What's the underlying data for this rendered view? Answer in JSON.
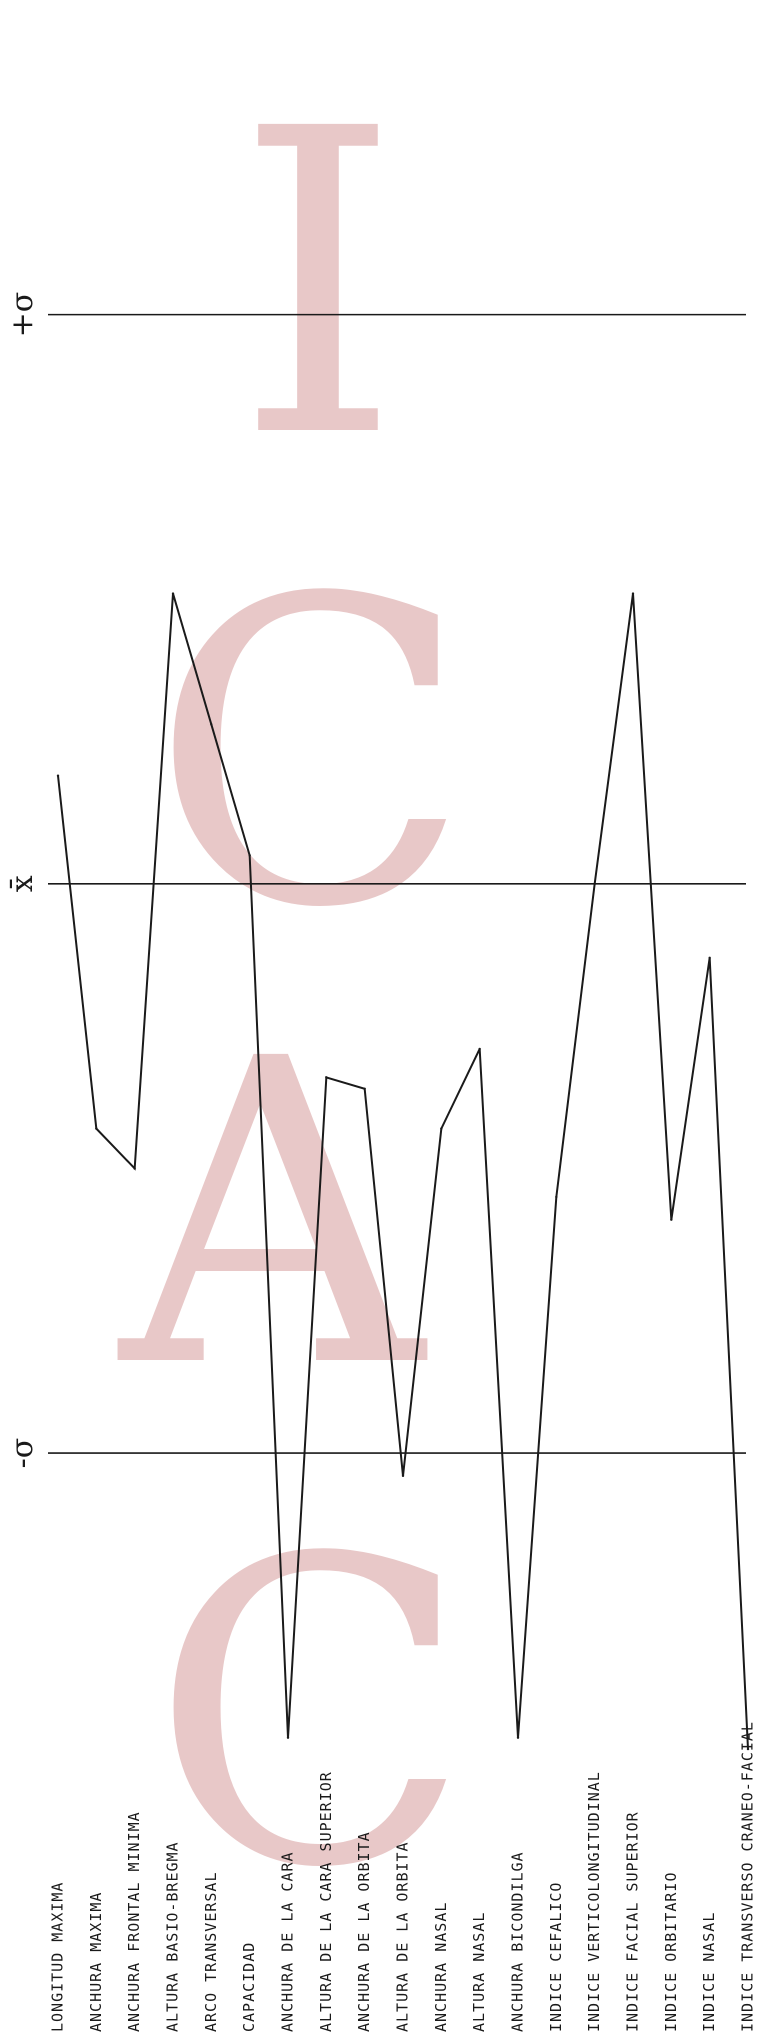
{
  "chart_data": {
    "type": "line",
    "orientation": "vertical-rotated",
    "reference_lines": [
      {
        "label": "+σ",
        "value": 1
      },
      {
        "label": "x̄",
        "value": 0
      },
      {
        "label": "-σ",
        "value": -1
      }
    ],
    "categories": [
      "LONGITUD MAXIMA",
      "ANCHURA MAXIMA",
      "ANCHURA FRONTAL MINIMA",
      "ALTURA BASIO-BREGMA",
      "ARCO TRANSVERSAL",
      "CAPACIDAD",
      "ANCHURA DE LA CARA",
      "ALTURA DE LA CARA SUPERIOR",
      "ANCHURA DE LA ORBITA",
      "ALTURA DE LA ORBITA",
      "ANCHURA NASAL",
      "ALTURA NASAL",
      "ANCHURA BICONDILGA",
      "INDICE CEFALICO",
      "INDICE VERTICOLONGITUDINAL",
      "INDICE FACIAL SUPERIOR",
      "INDICE ORBITARIO",
      "INDICE NASAL",
      "INDICE TRANSVERSO CRANEO-FACIAL"
    ],
    "values": [
      0.19,
      -0.43,
      -0.5,
      0.51,
      0.28,
      0.05,
      -1.5,
      -0.34,
      -0.36,
      -1.04,
      -0.43,
      -0.29,
      -1.5,
      -0.55,
      0.0,
      0.51,
      -0.59,
      -0.13,
      -1.52
    ],
    "ylim": [
      -1.75,
      1.5
    ]
  },
  "watermark": {
    "letters": [
      "I",
      "C",
      "A",
      "C"
    ],
    "color": "#e8c8c8"
  }
}
